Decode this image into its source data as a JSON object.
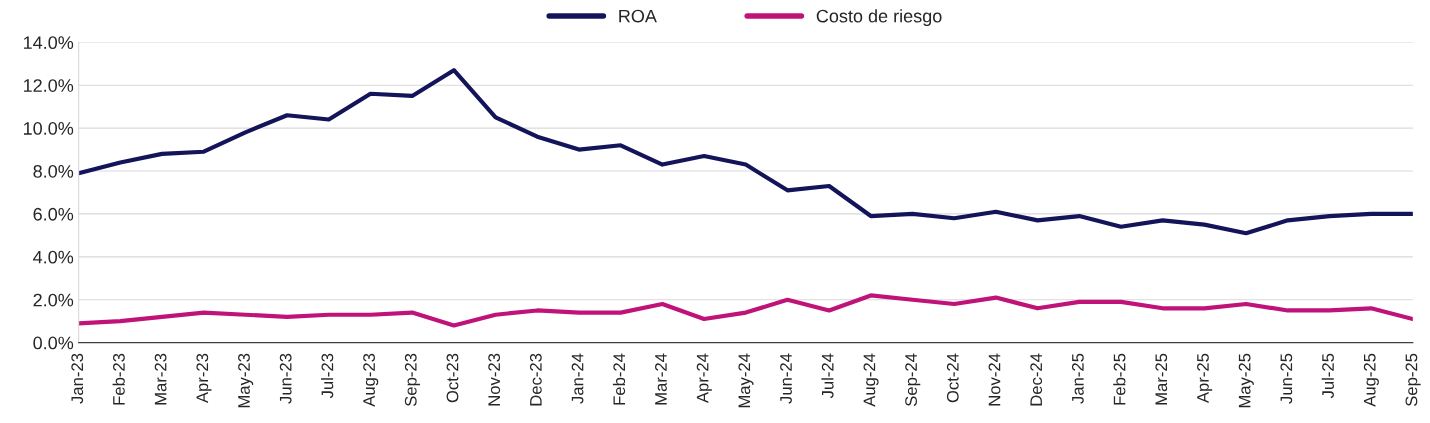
{
  "chart_data": {
    "type": "line",
    "categories": [
      "Jan-23",
      "Feb-23",
      "Mar-23",
      "Apr-23",
      "May-23",
      "Jun-23",
      "Jul-23",
      "Aug-23",
      "Sep-23",
      "Oct-23",
      "Nov-23",
      "Dec-23",
      "Jan-24",
      "Feb-24",
      "Mar-24",
      "Apr-24",
      "May-24",
      "Jun-24",
      "Jul-24",
      "Aug-24",
      "Sep-24",
      "Oct-24",
      "Nov-24",
      "Dec-24",
      "Jan-25",
      "Feb-25",
      "Mar-25",
      "Apr-25",
      "May-25",
      "Jun-25",
      "Jul-25",
      "Aug-25",
      "Sep-25"
    ],
    "series": [
      {
        "name": "ROA",
        "color": "#14145a",
        "values": [
          7.9,
          8.4,
          8.8,
          8.9,
          9.8,
          10.6,
          10.4,
          11.6,
          11.5,
          12.7,
          10.5,
          9.6,
          9.0,
          9.2,
          8.3,
          8.7,
          8.3,
          7.1,
          7.3,
          5.9,
          6.0,
          5.8,
          6.1,
          5.7,
          5.9,
          5.4,
          5.7,
          5.5,
          5.1,
          5.7,
          5.9,
          6.0,
          6.0
        ]
      },
      {
        "name": "Costo de riesgo",
        "color": "#c0137a",
        "values": [
          0.9,
          1.0,
          1.2,
          1.4,
          1.3,
          1.2,
          1.3,
          1.3,
          1.4,
          0.8,
          1.3,
          1.5,
          1.4,
          1.4,
          1.8,
          1.1,
          1.4,
          2.0,
          1.5,
          2.2,
          2.0,
          1.8,
          2.1,
          1.6,
          1.9,
          1.9,
          1.6,
          1.6,
          1.8,
          1.5,
          1.5,
          1.6,
          1.1
        ]
      }
    ],
    "ylim": [
      0,
      14
    ],
    "yticks": [
      {
        "value": 0,
        "label": "0.0%"
      },
      {
        "value": 2,
        "label": "2.0%"
      },
      {
        "value": 4,
        "label": "4.0%"
      },
      {
        "value": 6,
        "label": "6.0%"
      },
      {
        "value": 8,
        "label": "8.0%"
      },
      {
        "value": 10,
        "label": "10.0%"
      },
      {
        "value": 12,
        "label": "12.0%"
      },
      {
        "value": 14,
        "label": "14.0%"
      }
    ],
    "grid": "y",
    "legend": "top",
    "marker": "none",
    "line_style": "solid"
  }
}
